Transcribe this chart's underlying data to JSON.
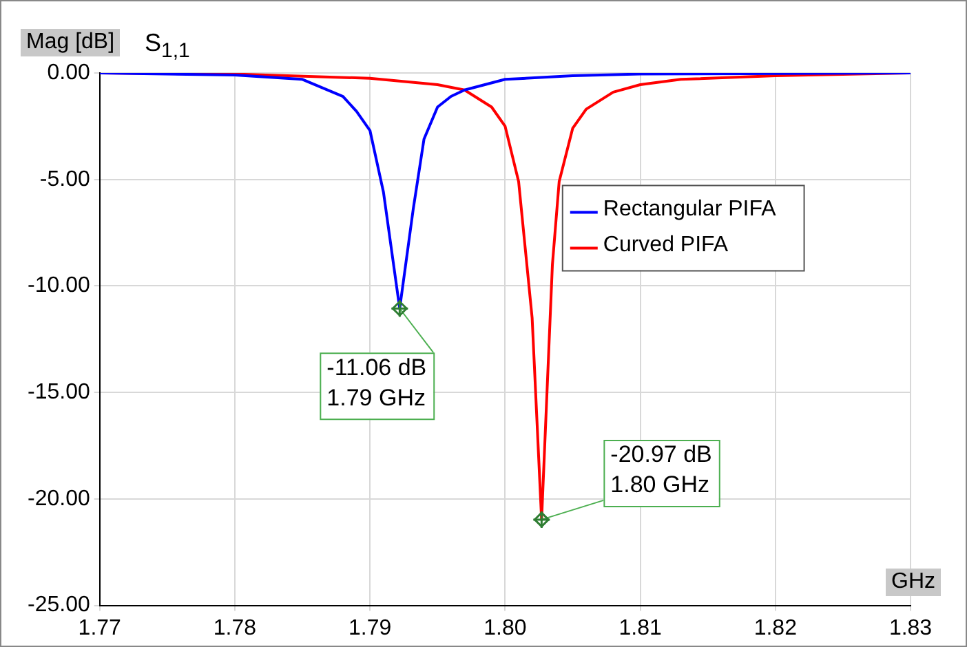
{
  "chart_data": {
    "type": "line",
    "title": "S$_{1,1}$",
    "xlabel": "GHz",
    "ylabel": "Mag [dB]",
    "xlim": [
      1.77,
      1.83
    ],
    "xticks": [
      1.77,
      1.78,
      1.79,
      {
        "value": 1.8,
        "label": "1.80"
      },
      1.81,
      1.82,
      1.83
    ],
    "ylim": [
      -25,
      0
    ],
    "yticks": [
      {
        "value": -25,
        "label": "-25.00"
      },
      {
        "value": -20,
        "label": "-20.00"
      },
      {
        "value": -15,
        "label": "-15.00"
      },
      {
        "value": -10,
        "label": "-10.00"
      },
      {
        "value": -5,
        "label": "-5.00"
      },
      {
        "value": 0,
        "label": "0.00"
      }
    ],
    "grid": true,
    "legend": "right",
    "marker": "none",
    "line_style": "solid",
    "series": [
      {
        "name": "Rectangular PIFA",
        "color": "#0000ff",
        "x": [
          1.77,
          1.78,
          1.785,
          1.788,
          1.789,
          1.79,
          1.791,
          1.7922,
          1.7932,
          1.794,
          1.795,
          1.796,
          1.797,
          1.8,
          1.805,
          1.81,
          1.83
        ],
        "values": [
          0,
          -0.1,
          -0.3,
          -1.1,
          -1.8,
          -2.7,
          -5.6,
          -11.06,
          -6.4,
          -3.1,
          -1.6,
          -1.1,
          -0.8,
          -0.3,
          -0.13,
          -0.05,
          0
        ]
      },
      {
        "name": "Curved PIFA",
        "color": "#ff0000",
        "x": [
          1.77,
          1.78,
          1.79,
          1.795,
          1.797,
          1.799,
          1.8,
          1.801,
          1.802,
          1.8027,
          1.8035,
          1.804,
          1.805,
          1.806,
          1.808,
          1.81,
          1.813,
          1.82,
          1.83
        ],
        "values": [
          0,
          -0.05,
          -0.25,
          -0.55,
          -0.8,
          -1.6,
          -2.5,
          -5.1,
          -11.5,
          -20.97,
          -9,
          -5.1,
          -2.6,
          -1.7,
          -0.9,
          -0.55,
          -0.3,
          -0.13,
          0
        ]
      }
    ],
    "annotations": [
      {
        "text": "-11.06 dB\n1.79 GHz",
        "x": 1.7922,
        "y": -11.06
      },
      {
        "text": "-20.97 dB\n1.80 GHz",
        "x": 1.8027,
        "y": -20.97
      }
    ]
  }
}
